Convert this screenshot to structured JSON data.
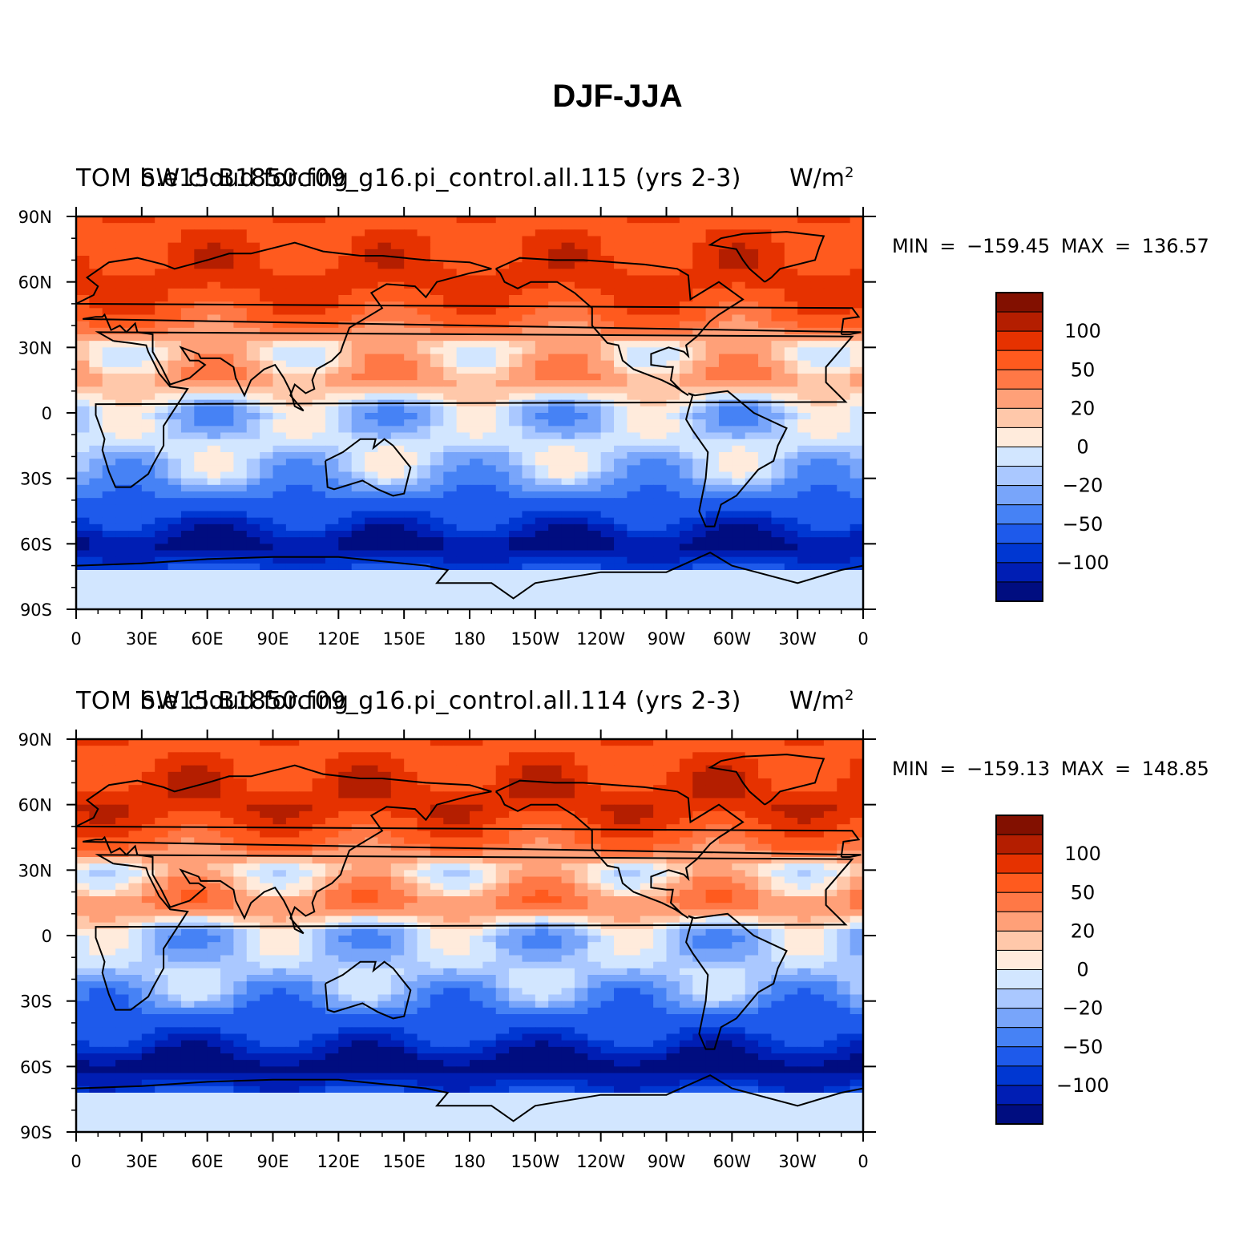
{
  "figure": {
    "title": "DJF-JJA",
    "panels": [
      {
        "title_overlay_a": "TOM b.e15.B1850.f09_g16.pi_control.all.115 (yrs 2-3)",
        "title_overlay_b": "SW cloud forcing",
        "units": "W/m",
        "units_sup": "2",
        "min": "-159.45",
        "max": "136.57",
        "minmax_text": "MIN = −159.45 MAX = 136.57"
      },
      {
        "title_overlay_a": "TOM b.e15.B1850.f09_g16.pi_control.all.114 (yrs 2-3)",
        "title_overlay_b": "SW cloud forcing",
        "units": "W/m",
        "units_sup": "2",
        "min": "-159.13",
        "max": "148.85",
        "minmax_text": "MIN = −159.13 MAX = 148.85"
      }
    ]
  },
  "axes": {
    "x_ticks": [
      "0",
      "30E",
      "60E",
      "90E",
      "120E",
      "150E",
      "180",
      "150W",
      "120W",
      "90W",
      "60W",
      "30W",
      "0"
    ],
    "y_ticks": [
      "90N",
      "60N",
      "30N",
      "0",
      "30S",
      "60S",
      "90S"
    ]
  },
  "colorbar": {
    "colors": [
      "#000d80",
      "#001eb4",
      "#0037d2",
      "#1e5aeb",
      "#4682f5",
      "#78a5fa",
      "#aac8ff",
      "#d2e6ff",
      "#ffebdc",
      "#ffc8aa",
      "#ffa078",
      "#ff7846",
      "#ff5a1e",
      "#e63200",
      "#b41e00",
      "#821000"
    ],
    "labels": [
      "100",
      "50",
      "20",
      "0",
      "−20",
      "−50",
      "−100"
    ]
  },
  "chart_data": {
    "type": "heatmap",
    "description_basis": "Global lat-lon contour maps of seasonal difference (DJF minus JJA)",
    "x_range": [
      "0",
      "0"
    ],
    "y_range": [
      "90S",
      "90N"
    ],
    "levels": [
      -100,
      -50,
      -20,
      0,
      20,
      50,
      100
    ],
    "zonal_mean_profile_panel1": [
      {
        "lat": 80,
        "value": 75
      },
      {
        "lat": 60,
        "value": 90
      },
      {
        "lat": 45,
        "value": 60
      },
      {
        "lat": 30,
        "value": 10
      },
      {
        "lat": 15,
        "value": 30
      },
      {
        "lat": 0,
        "value": -20
      },
      {
        "lat": -15,
        "value": -5
      },
      {
        "lat": -30,
        "value": -25
      },
      {
        "lat": -45,
        "value": -70
      },
      {
        "lat": -60,
        "value": -130
      },
      {
        "lat": -75,
        "value": -60
      },
      {
        "lat": -85,
        "value": -10
      }
    ],
    "zonal_mean_profile_panel2": [
      {
        "lat": 80,
        "value": 75
      },
      {
        "lat": 60,
        "value": 100
      },
      {
        "lat": 45,
        "value": 60
      },
      {
        "lat": 30,
        "value": 5
      },
      {
        "lat": 15,
        "value": 40
      },
      {
        "lat": 0,
        "value": -20
      },
      {
        "lat": -15,
        "value": -10
      },
      {
        "lat": -30,
        "value": -35
      },
      {
        "lat": -45,
        "value": -80
      },
      {
        "lat": -60,
        "value": -140
      },
      {
        "lat": -75,
        "value": -60
      },
      {
        "lat": -85,
        "value": -10
      }
    ]
  }
}
